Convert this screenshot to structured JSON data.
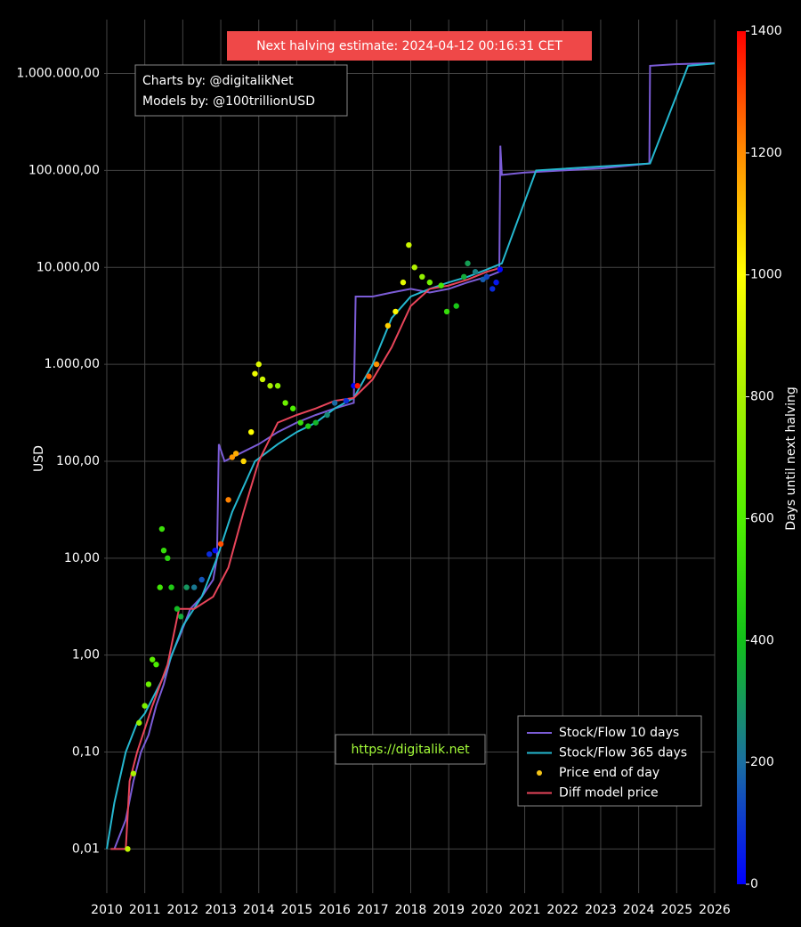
{
  "chart_data": {
    "type": "line",
    "log_y": true,
    "grid": true,
    "y_label": "USD",
    "xlim": [
      2009.93,
      2026.0
    ],
    "xticks": [
      2010,
      2011,
      2012,
      2013,
      2014,
      2015,
      2016,
      2017,
      2018,
      2019,
      2020,
      2021,
      2022,
      2023,
      2024,
      2025,
      2026
    ],
    "ylim": [
      0.0035,
      3600000
    ],
    "yticks": [
      {
        "value": 0.01,
        "label": "0,01"
      },
      {
        "value": 0.1,
        "label": "0,10"
      },
      {
        "value": 1,
        "label": "1,00"
      },
      {
        "value": 10,
        "label": "10,00"
      },
      {
        "value": 100,
        "label": "100,00"
      },
      {
        "value": 1000,
        "label": "1.000,00"
      },
      {
        "value": 10000,
        "label": "10.000,00"
      },
      {
        "value": 100000,
        "label": "100.000,00"
      },
      {
        "value": 1000000,
        "label": "1.000.000,00"
      }
    ],
    "annotations": [
      "Next halving estimate: 2024-04-12 00:16:31 CET",
      "Charts by: @digitalikNet",
      "Models by: @100trillionUSD",
      "https://digitalik.net"
    ],
    "legend_position": "bottom-right",
    "colorbar": {
      "title": "Days until next halving",
      "lim": [
        0,
        1400
      ],
      "ticks": [
        0,
        200,
        400,
        600,
        800,
        1000,
        1200,
        1400
      ],
      "colorscale": [
        [
          0,
          "#0000ff"
        ],
        [
          200,
          "#1a6fa0"
        ],
        [
          400,
          "#12c01a"
        ],
        [
          600,
          "#50f000"
        ],
        [
          800,
          "#a8f000"
        ],
        [
          1000,
          "#ffff00"
        ],
        [
          1200,
          "#ff8c00"
        ],
        [
          1400,
          "#ff0000"
        ]
      ]
    },
    "series": [
      {
        "name": "Stock/Flow 10 days",
        "kind": "line",
        "color": "#7b5cd6",
        "x": [
          2010.2,
          2010.5,
          2010.7,
          2010.9,
          2011.1,
          2011.3,
          2011.5,
          2011.7,
          2011.9,
          2012.2,
          2012.5,
          2012.8,
          2012.9,
          2012.95,
          2013.1,
          2013.5,
          2014.0,
          2014.5,
          2015.0,
          2015.5,
          2016.0,
          2016.5,
          2016.55,
          2017.0,
          2017.5,
          2018.0,
          2018.5,
          2019.0,
          2019.5,
          2020.0,
          2020.33,
          2020.36,
          2020.4,
          2021.0,
          2022.0,
          2023.0,
          2024.28,
          2024.3,
          2025.0,
          2026.0
        ],
        "values": [
          0.01,
          0.02,
          0.05,
          0.1,
          0.15,
          0.3,
          0.5,
          1.0,
          1.5,
          3,
          4,
          6,
          10,
          150,
          100,
          120,
          150,
          200,
          250,
          300,
          350,
          400,
          5000,
          5000,
          5500,
          6000,
          5500,
          6000,
          7000,
          8000,
          9000,
          180000,
          90000,
          95000,
          100000,
          105000,
          118000,
          1200000,
          1250000,
          1280000
        ]
      },
      {
        "name": "Stock/Flow 365 days",
        "kind": "line",
        "color": "#25b8d0",
        "x": [
          2010.0,
          2010.2,
          2010.5,
          2010.8,
          2011.0,
          2011.5,
          2012.0,
          2012.5,
          2012.9,
          2013.3,
          2013.9,
          2014.5,
          2015.0,
          2015.5,
          2016.0,
          2016.5,
          2017.0,
          2017.5,
          2018.0,
          2018.5,
          2019.0,
          2019.5,
          2020.0,
          2020.4,
          2021.3,
          2024.3,
          2025.3,
          2026.0
        ],
        "values": [
          0.01,
          0.03,
          0.1,
          0.2,
          0.25,
          0.6,
          2,
          4,
          10,
          30,
          100,
          150,
          200,
          250,
          350,
          450,
          1000,
          3000,
          5000,
          6000,
          7000,
          8000,
          9500,
          11000,
          100000,
          118000,
          1200000,
          1270000
        ]
      },
      {
        "name": "Price end of day",
        "kind": "scatter",
        "color": "#f5c518",
        "x": [
          2010.55,
          2010.7,
          2010.85,
          2011.0,
          2011.1,
          2011.2,
          2011.3,
          2011.4,
          2011.45,
          2011.5,
          2011.6,
          2011.7,
          2011.85,
          2011.95,
          2012.1,
          2012.3,
          2012.5,
          2012.7,
          2012.85,
          2013.0,
          2013.2,
          2013.3,
          2013.4,
          2013.6,
          2013.8,
          2013.9,
          2014.0,
          2014.1,
          2014.3,
          2014.5,
          2014.7,
          2014.9,
          2015.1,
          2015.3,
          2015.5,
          2015.8,
          2016.0,
          2016.3,
          2016.5,
          2016.6,
          2016.9,
          2017.1,
          2017.4,
          2017.6,
          2017.8,
          2017.95,
          2018.1,
          2018.3,
          2018.5,
          2018.8,
          2018.95,
          2019.2,
          2019.4,
          2019.5,
          2019.7,
          2019.9,
          2020.0,
          2020.15,
          2020.25,
          2020.35
        ],
        "values": [
          0.01,
          0.06,
          0.2,
          0.3,
          0.5,
          0.9,
          0.8,
          5,
          20,
          12,
          10,
          5,
          3,
          2.5,
          5,
          5,
          6,
          11,
          12,
          14,
          40,
          110,
          120,
          100,
          200,
          800,
          1000,
          700,
          600,
          600,
          400,
          350,
          250,
          230,
          250,
          300,
          400,
          420,
          600,
          600,
          750,
          1000,
          2500,
          3500,
          7000,
          17000,
          10000,
          8000,
          7000,
          6500,
          3500,
          4000,
          8000,
          11000,
          9000,
          7500,
          8000,
          6000,
          7000,
          9500
        ],
        "days": [
          860,
          807,
          752,
          697,
          661,
          624,
          588,
          551,
          533,
          515,
          478,
          442,
          387,
          350,
          296,
          223,
          150,
          77,
          22,
          1288,
          1215,
          1179,
          1142,
          1069,
          996,
          960,
          923,
          887,
          814,
          741,
          668,
          595,
          522,
          449,
          376,
          266,
          193,
          84,
          11,
          1372,
          1263,
          1190,
          1081,
          1008,
          935,
          880,
          825,
          752,
          679,
          570,
          515,
          423,
          351,
          314,
          241,
          168,
          131,
          77,
          40,
          4
        ]
      },
      {
        "name": "Diff model price",
        "kind": "line",
        "color": "#e8455a",
        "x": [
          2010.1,
          2010.5,
          2010.6,
          2010.8,
          2011.2,
          2011.6,
          2011.9,
          2012.3,
          2012.8,
          2013.2,
          2013.6,
          2014.0,
          2014.5,
          2015.0,
          2015.5,
          2016.0,
          2016.5,
          2017.0,
          2017.5,
          2018.0,
          2018.5,
          2019.0,
          2019.5,
          2020.0,
          2020.4
        ],
        "values": [
          0.01,
          0.01,
          0.05,
          0.1,
          0.3,
          0.8,
          3,
          3,
          4,
          8,
          30,
          100,
          250,
          300,
          350,
          420,
          450,
          700,
          1500,
          4000,
          6000,
          6500,
          7500,
          9000,
          10000
        ]
      }
    ]
  }
}
